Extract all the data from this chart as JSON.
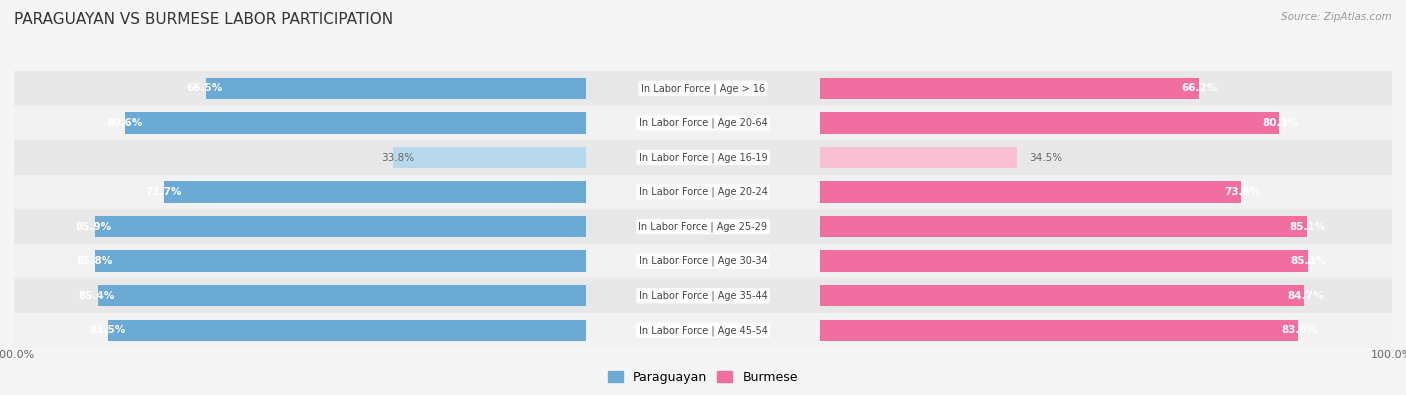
{
  "title": "PARAGUAYAN VS BURMESE LABOR PARTICIPATION",
  "source": "Source: ZipAtlas.com",
  "categories": [
    "In Labor Force | Age > 16",
    "In Labor Force | Age 20-64",
    "In Labor Force | Age 16-19",
    "In Labor Force | Age 20-24",
    "In Labor Force | Age 25-29",
    "In Labor Force | Age 30-34",
    "In Labor Force | Age 35-44",
    "In Labor Force | Age 45-54"
  ],
  "paraguayan": [
    66.5,
    80.6,
    33.8,
    73.7,
    85.9,
    85.8,
    85.4,
    83.5
  ],
  "burmese": [
    66.2,
    80.3,
    34.5,
    73.6,
    85.1,
    85.3,
    84.7,
    83.6
  ],
  "paraguayan_color_strong": "#6aaad4",
  "paraguayan_color_light": "#b8d8ed",
  "burmese_color_strong": "#f06fa0",
  "burmese_color_light": "#f9c0d4",
  "label_color_white": "#ffffff",
  "label_color_dark": "#666666",
  "row_bg_even": "#e8e8e8",
  "row_bg_odd": "#f2f2f2",
  "background_color": "#f5f5f5",
  "threshold_strong": 50,
  "bar_height": 0.62,
  "figsize": [
    14.06,
    3.95
  ],
  "dpi": 100
}
